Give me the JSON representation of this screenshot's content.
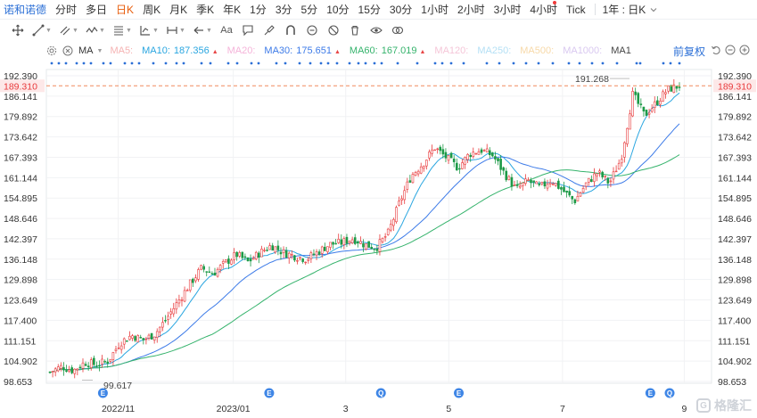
{
  "stock_name": "诺和诺德",
  "tabs": [
    "分时",
    "多日",
    "日K",
    "周K",
    "月K",
    "季K",
    "年K",
    "1分",
    "3分",
    "5分",
    "10分",
    "15分",
    "30分",
    "1小时",
    "2小时",
    "3小时",
    "4小时",
    "Tick"
  ],
  "active_tab": "日K",
  "range_label": "1年 : 日K",
  "ma_label": "MA",
  "legend": [
    {
      "name": "MA5:",
      "value": "",
      "color": "#f5b3b3",
      "up": false
    },
    {
      "name": "MA10:",
      "value": "187.356",
      "color": "#2aa6e0",
      "up": true
    },
    {
      "name": "MA20:",
      "value": "",
      "color": "#f5b3d9",
      "up": false
    },
    {
      "name": "MA30:",
      "value": "175.651",
      "color": "#3d7be8",
      "up": true
    },
    {
      "name": "MA60:",
      "value": "167.019",
      "color": "#35b36c",
      "up": true
    },
    {
      "name": "MA120:",
      "value": "",
      "color": "#f5c6d8",
      "up": false
    },
    {
      "name": "MA250:",
      "value": "",
      "color": "#b5e0f5",
      "up": false
    },
    {
      "name": "MA500:",
      "value": "",
      "color": "#f7d9a8",
      "up": false
    },
    {
      "name": "MA1000:",
      "value": "",
      "color": "#d9c8f0",
      "up": false
    },
    {
      "name": "MA1",
      "value": "",
      "color": "#444444",
      "up": false
    }
  ],
  "adjust_label": "前复权",
  "current_price": "189.310",
  "high_marker": "191.268",
  "low_marker": "99.617",
  "events": [
    {
      "label": "E",
      "x": 0.085
    },
    {
      "label": "E",
      "x": 0.335
    },
    {
      "label": "Q",
      "x": 0.503
    },
    {
      "label": "E",
      "x": 0.62
    },
    {
      "label": "E",
      "x": 0.908
    },
    {
      "label": "Q",
      "x": 0.937
    }
  ],
  "watermark": "格隆汇",
  "colors": {
    "up": "#e8383a",
    "down": "#1d9a47",
    "accent": "#2b6fd6",
    "active": "#e85d0c"
  },
  "chart_data": {
    "type": "candlestick",
    "title": "",
    "y_ticks": [
      "192.390",
      "186.141",
      "179.892",
      "173.642",
      "167.393",
      "161.144",
      "154.895",
      "148.646",
      "142.397",
      "136.148",
      "129.898",
      "123.649",
      "117.400",
      "111.151",
      "104.902",
      "98.653"
    ],
    "y_range": [
      98.653,
      192.39
    ],
    "x_ticks": [
      "2022/11",
      "2023/01",
      "3",
      "5",
      "7",
      "9"
    ],
    "close_path": [
      101.5,
      103.2,
      102.0,
      104.5,
      103.8,
      105.0,
      110.5,
      112.8,
      111.4,
      113.2,
      117.9,
      123.2,
      128.5,
      133.4,
      131.7,
      134.9,
      137.6,
      135.3,
      138.1,
      140.4,
      138.2,
      137.1,
      136.2,
      138.4,
      140.7,
      141.2,
      142.5,
      140.6,
      139.7,
      144.1,
      153.6,
      161.8,
      165.5,
      170.4,
      167.3,
      164.2,
      168.5,
      169.6,
      167.9,
      162.4,
      157.5,
      160.2,
      158.1,
      160.4,
      157.2,
      153.9,
      159.3,
      162.8,
      159.4,
      167.1,
      186.8,
      180.2,
      184.1,
      188.2,
      189.31
    ],
    "ma10": 187.356,
    "ma30": 175.651,
    "ma60": 167.019
  }
}
